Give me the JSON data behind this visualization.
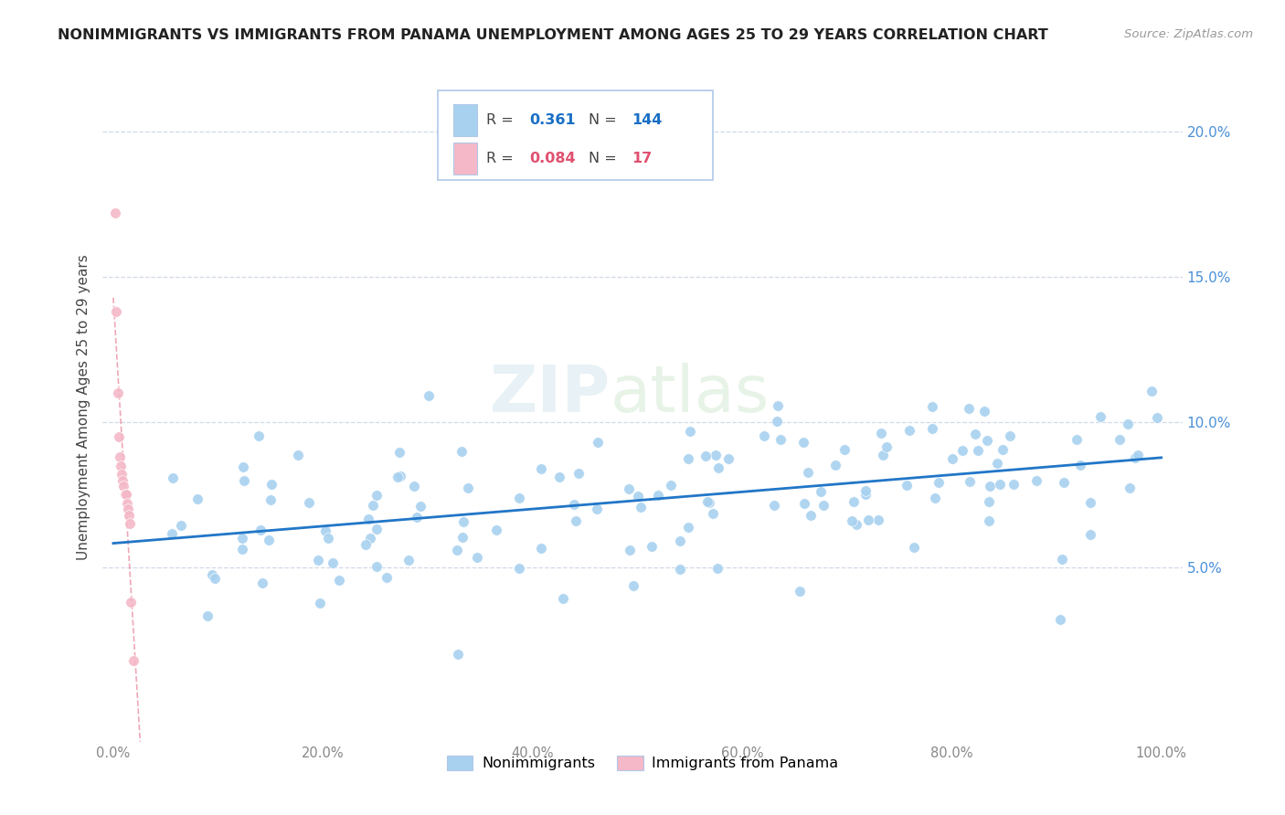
{
  "title": "NONIMMIGRANTS VS IMMIGRANTS FROM PANAMA UNEMPLOYMENT AMONG AGES 25 TO 29 YEARS CORRELATION CHART",
  "source": "Source: ZipAtlas.com",
  "ylabel": "Unemployment Among Ages 25 to 29 years",
  "xlim": [
    -1,
    102
  ],
  "ylim": [
    -1,
    22
  ],
  "x_tick_vals": [
    0,
    20,
    40,
    60,
    80,
    100
  ],
  "x_tick_labels": [
    "0.0%",
    "20.0%",
    "40.0%",
    "60.0%",
    "80.0%",
    "100.0%"
  ],
  "y_tick_vals": [
    5,
    10,
    15,
    20
  ],
  "y_tick_labels": [
    "5.0%",
    "10.0%",
    "15.0%",
    "20.0%"
  ],
  "r_nonimmigrant": 0.361,
  "n_nonimmigrant": 144,
  "r_immigrant": 0.084,
  "n_immigrant": 17,
  "nonimmigrant_color": "#a8d1f0",
  "immigrant_color": "#f4b8c8",
  "trendline_nonimmigrant_color": "#2176c7",
  "trendline_immigrant_color": "#e8829a",
  "ytick_color": "#4a90d9",
  "xtick_color": "#888888",
  "grid_color": "#d0d8e8",
  "watermark": "ZIPatlas",
  "legend_box_color": "#e8f0f8",
  "legend_border_color": "#b0c8e8",
  "ni_R_color": "#1a6fc4",
  "im_R_color": "#e05070",
  "ni_N_color": "#1a6fc4",
  "im_N_color": "#e05070",
  "ni_label_color": "#555555",
  "im_label_color": "#555555"
}
